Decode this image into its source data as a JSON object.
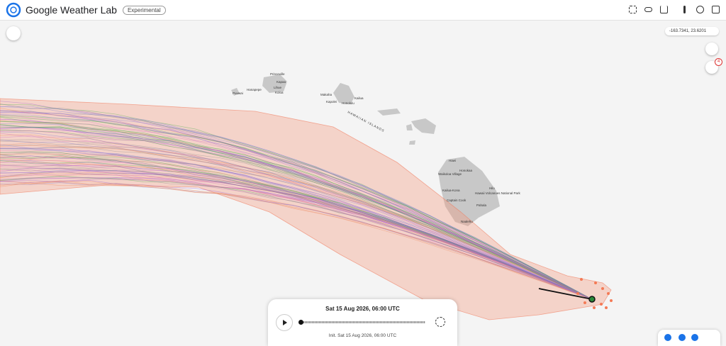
{
  "header": {
    "title": "Google Weather Lab",
    "badge": "Experimental"
  },
  "map": {
    "coordinates": "-163.7341, 23.6201",
    "layer_badge": "4",
    "labels": [
      "Princeville",
      "Kapaa",
      "Lihue",
      "Koloa",
      "Hanapepe",
      "Puuwai",
      "Makaha",
      "Kailua",
      "Kapolei",
      "Honolulu",
      "HAWAIIAN ISLANDS",
      "Hawi",
      "Honokaa",
      "Waikoloa Village",
      "Hilo",
      "Kailua-Kona",
      "Hawaii Volcanoes National Park",
      "Captain Cook",
      "Pahala",
      "Naalehu"
    ]
  },
  "timeline": {
    "current": "Sat 15 Aug 2026, 06:00 UTC",
    "init": "Init. Sat 15 Aug 2026, 06:00 UTC"
  }
}
